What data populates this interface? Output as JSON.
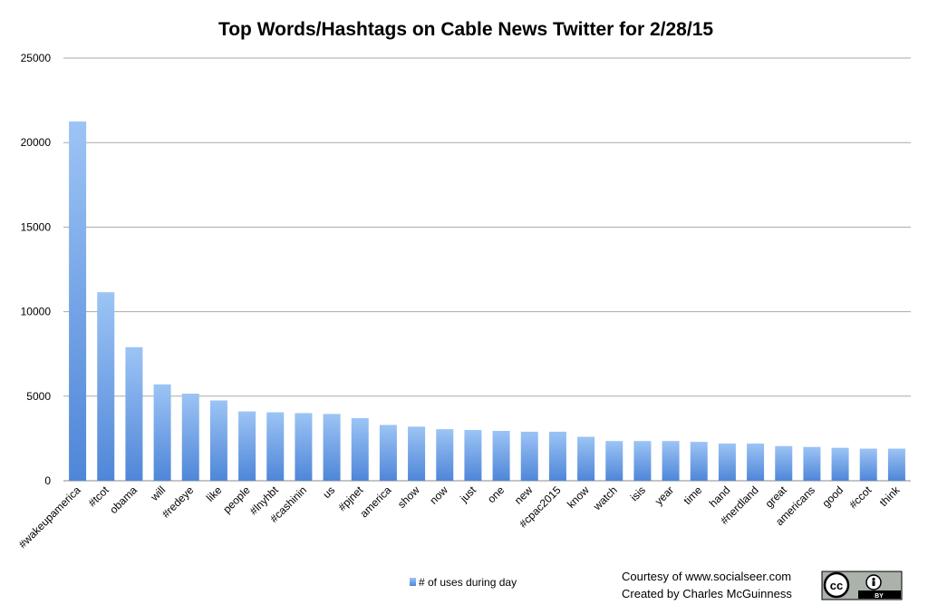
{
  "chart_data": {
    "type": "bar",
    "title": "Top Words/Hashtags on Cable News Twitter for 2/28/15",
    "xlabel": "",
    "ylabel": "",
    "ylim": [
      0,
      25000
    ],
    "yticks": [
      0,
      5000,
      10000,
      15000,
      20000,
      25000
    ],
    "grid": true,
    "legend_position": "bottom",
    "categories": [
      "#wakeupamerica",
      "#tcot",
      "obama",
      "will",
      "#redeye",
      "like",
      "people",
      "#lnyhbt",
      "#cashinin",
      "us",
      "#pjnet",
      "america",
      "show",
      "now",
      "just",
      "one",
      "new",
      "#cpac2015",
      "know",
      "watch",
      "isis",
      "year",
      "time",
      "hand",
      "#nerdland",
      "great",
      "americans",
      "good",
      "#ccot",
      "think"
    ],
    "series": [
      {
        "name": "# of uses during day",
        "color": "#6f9fe3",
        "values": [
          21250,
          11150,
          7900,
          5700,
          5150,
          4750,
          4100,
          4050,
          4000,
          3950,
          3700,
          3300,
          3200,
          3050,
          3000,
          2950,
          2900,
          2900,
          2600,
          2350,
          2350,
          2350,
          2300,
          2200,
          2200,
          2050,
          2000,
          1950,
          1900,
          1900
        ]
      }
    ]
  },
  "credits": {
    "line1": "Courtesy of www.socialseer.com",
    "line2": "Created by Charles McGuinness"
  },
  "badge": {
    "cc": "cc",
    "by": "BY"
  }
}
